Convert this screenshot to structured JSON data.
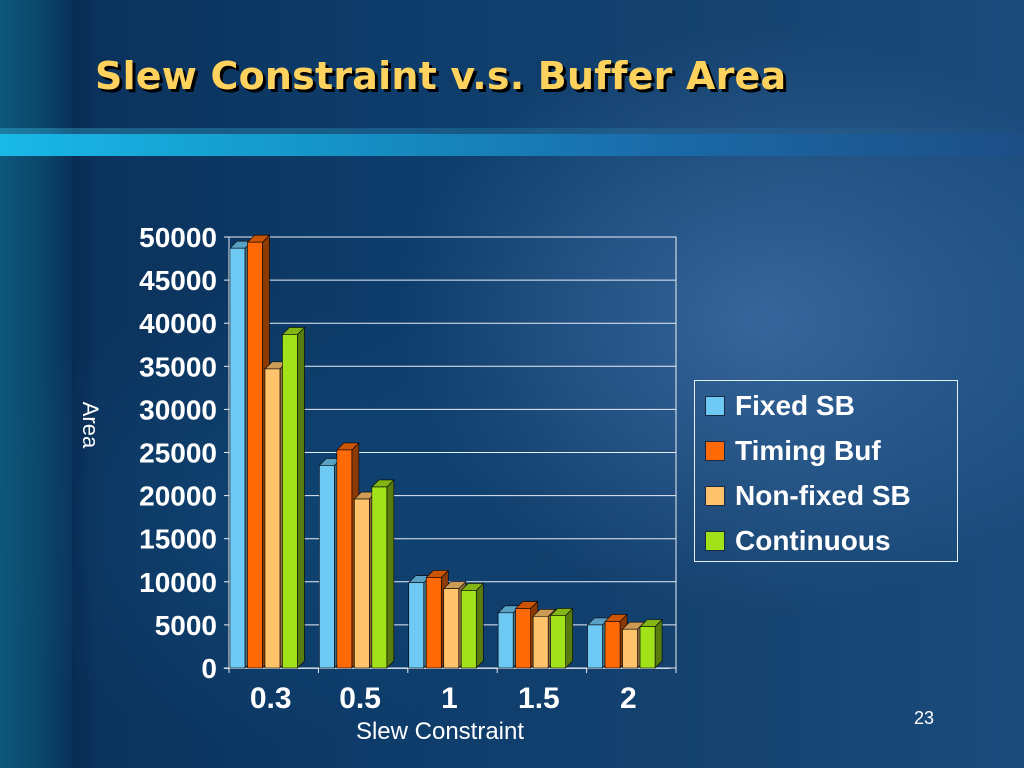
{
  "slide": {
    "title": "Slew Constraint v.s. Buffer Area",
    "page_number": "23"
  },
  "chart_data": {
    "type": "bar",
    "categories": [
      "0.3",
      "0.5",
      "1",
      "1.5",
      "2"
    ],
    "series": [
      {
        "name": "Fixed SB",
        "color": "#6ec9f5",
        "values": [
          48700,
          23500,
          9900,
          6400,
          5000
        ]
      },
      {
        "name": "Timing Buf",
        "color": "#ff6a06",
        "values": [
          49400,
          25300,
          10500,
          6900,
          5400
        ]
      },
      {
        "name": "Non-fixed SB",
        "color": "#ffc36b",
        "values": [
          34700,
          19600,
          9200,
          6000,
          4500
        ]
      },
      {
        "name": "Continuous",
        "color": "#a2e21a",
        "values": [
          38700,
          21000,
          9000,
          6100,
          4800
        ]
      }
    ],
    "ylim": [
      0,
      50000
    ],
    "yticks": [
      "50000",
      "45000",
      "40000",
      "35000",
      "30000",
      "25000",
      "20000",
      "15000",
      "10000",
      "5000",
      "0"
    ],
    "xlabel": "Slew Constraint",
    "ylabel": "Area",
    "legend_position": "right",
    "grid": true
  }
}
